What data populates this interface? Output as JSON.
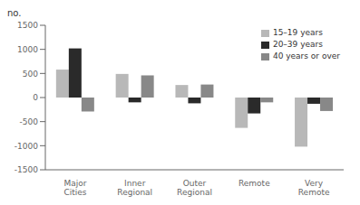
{
  "chart_data": {
    "type": "bar",
    "ylabel": "no.",
    "categories": [
      "Major Cities",
      "Inner Regional",
      "Outer Regional",
      "Remote",
      "Very Remote"
    ],
    "series": [
      {
        "name": "15–19 years",
        "color": "#b8b8b8",
        "values": [
          580,
          490,
          260,
          -630,
          -1020
        ]
      },
      {
        "name": "20–39 years",
        "color": "#2a2a2a",
        "values": [
          1020,
          -100,
          -120,
          -330,
          -130
        ]
      },
      {
        "name": "40 years or over",
        "color": "#888888",
        "values": [
          -290,
          460,
          270,
          -100,
          -280
        ]
      }
    ],
    "ylim": [
      -1500,
      1500
    ],
    "yticks": [
      -1500,
      -1000,
      -500,
      0,
      500,
      1000,
      1500
    ],
    "grid": false,
    "legend": "upper right"
  }
}
